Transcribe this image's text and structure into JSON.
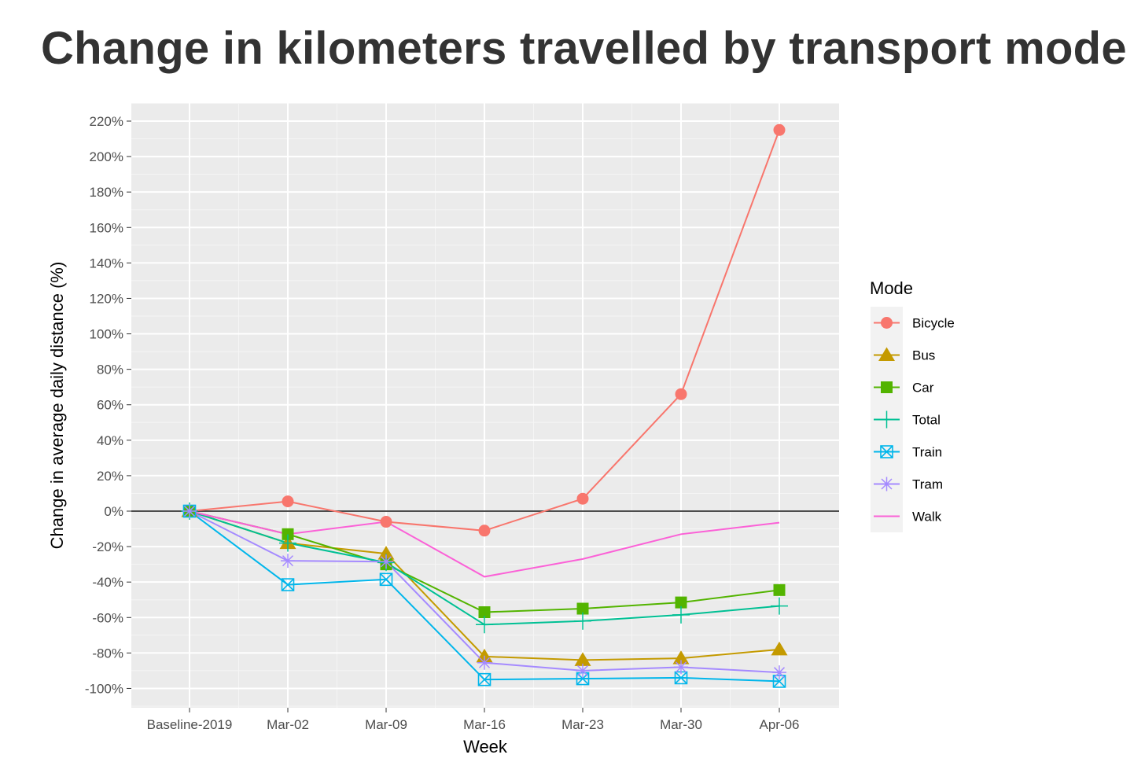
{
  "chart_data": {
    "type": "line",
    "title": "Change in kilometers travelled by transport mode",
    "xlabel": "Week",
    "ylabel": "Change in average daily distance (%)",
    "categories": [
      "Baseline-2019",
      "Mar-02",
      "Mar-09",
      "Mar-16",
      "Mar-23",
      "Mar-30",
      "Apr-06"
    ],
    "ylim": [
      -110,
      230
    ],
    "y_ticks": [
      -100,
      -80,
      -60,
      -40,
      -20,
      0,
      20,
      40,
      60,
      80,
      100,
      120,
      140,
      160,
      180,
      200,
      220
    ],
    "y_tick_format": "percent",
    "reference_line": 0,
    "grid": true,
    "legend": {
      "title": "Mode",
      "position": "right"
    },
    "series": [
      {
        "name": "Bicycle",
        "color": "#F8766D",
        "shape": "circle",
        "values": [
          0,
          5.5,
          -6,
          -11,
          7,
          66,
          215
        ]
      },
      {
        "name": "Bus",
        "color": "#C49A00",
        "shape": "triangle",
        "values": [
          0,
          -18,
          -24,
          -82,
          -84,
          -83,
          -78
        ]
      },
      {
        "name": "Car",
        "color": "#53B400",
        "shape": "square",
        "values": [
          0,
          -13,
          -30,
          -57,
          -55,
          -51.5,
          -44.5
        ]
      },
      {
        "name": "Total",
        "color": "#00C094",
        "shape": "plus",
        "values": [
          0,
          -18,
          -29,
          -64,
          -62,
          -58.5,
          -53.5
        ]
      },
      {
        "name": "Train",
        "color": "#00B6EB",
        "shape": "square-cross",
        "values": [
          0,
          -41.5,
          -38.5,
          -95,
          -94.5,
          -94,
          -96
        ]
      },
      {
        "name": "Tram",
        "color": "#A58AFF",
        "shape": "asterisk",
        "values": [
          0,
          -28,
          -28.5,
          -85.5,
          -90,
          -88,
          -91
        ]
      },
      {
        "name": "Walk",
        "color": "#FB61D7",
        "shape": "none",
        "values": [
          0,
          -13,
          -6,
          -37,
          -27,
          -13,
          -6.5
        ]
      }
    ]
  }
}
